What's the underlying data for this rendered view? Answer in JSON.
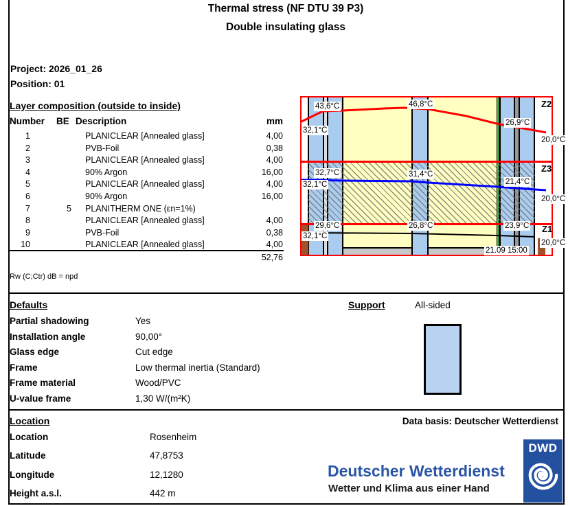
{
  "header": {
    "title_line1": "Thermal stress (NF DTU 39 P3)",
    "title_line2": "Double insulating glass",
    "project": "Project: 2026_01_26",
    "position": "Position: 01"
  },
  "layer_table": {
    "heading": "Layer composition (outside to inside)",
    "columns": [
      "Number",
      "BE",
      "Description",
      "mm"
    ],
    "rows": [
      [
        "1",
        "",
        "PLANICLEAR [Annealed glass]",
        "4,00"
      ],
      [
        "2",
        "",
        "PVB-Foil",
        "0,38"
      ],
      [
        "3",
        "",
        "PLANICLEAR [Annealed glass]",
        "4,00"
      ],
      [
        "4",
        "",
        "90% Argon",
        "16,00"
      ],
      [
        "5",
        "",
        "PLANICLEAR [Annealed glass]",
        "4,00"
      ],
      [
        "6",
        "",
        "90% Argon",
        "16,00"
      ],
      [
        "7",
        "5",
        "PLANITHERM ONE (εn=1%)",
        ""
      ],
      [
        "8",
        "",
        "PLANICLEAR [Annealed glass]",
        "4,00"
      ],
      [
        "9",
        "",
        "PVB-Foil",
        "0,38"
      ],
      [
        "10",
        "",
        "PLANICLEAR [Annealed glass]",
        "4,00"
      ]
    ],
    "total": "52,76",
    "rw_note": "Rw (C;Ctr) dB = npd"
  },
  "diagram": {
    "timestamp": "21.09 15:00",
    "zones": [
      {
        "name": "Z2",
        "temps": {
          "left": "32,1°C",
          "outer_pane": "43,6°C",
          "middle_pane": "46,8°C",
          "inner_pane": "26,9°C",
          "right": "20,0°C"
        }
      },
      {
        "name": "Z3",
        "temps": {
          "left": "32,1°C",
          "outer_pane": "32,7°C",
          "middle_pane": "31,4°C",
          "inner_pane": "21,4°C",
          "right": "20,0°C"
        }
      },
      {
        "name": "Z1",
        "temps": {
          "left": "32,1°C",
          "outer_pane": "29,6°C",
          "middle_pane": "26,8°C",
          "inner_pane": "23,9°C",
          "right": "20,0°C"
        }
      }
    ],
    "colors": {
      "frame_red": "#FF0000",
      "glass_blue": "#AACCEE",
      "gas_yellow": "#FFFFC2",
      "coating_green": "#44D544",
      "spacer_gray": "#C8C8C8",
      "edge_brown": "#A0522D",
      "curve_z2": "#FF0000",
      "curve_z3": "#0000FF",
      "curve_z1": "#000000"
    }
  },
  "defaults": {
    "heading": "Defaults",
    "rows": [
      [
        "Partial shadowing",
        "Yes"
      ],
      [
        "Installation angle",
        "90,00°"
      ],
      [
        "Glass edge",
        "Cut edge"
      ],
      [
        "Frame",
        "Low thermal inertia (Standard)"
      ],
      [
        "Frame material",
        "Wood/PVC"
      ],
      [
        "U-value frame",
        "1,30 W/(m²K)"
      ]
    ]
  },
  "support": {
    "heading": "Support",
    "value": "All-sided",
    "fill_color": "#B8D2F0"
  },
  "location": {
    "heading": "Location",
    "data_basis": "Data basis: Deutscher Wetterdienst",
    "rows": [
      [
        "Location",
        "Rosenheim"
      ],
      [
        "Latitude",
        "47,8753"
      ],
      [
        "Longitude",
        "12,1280"
      ],
      [
        "Height a.s.l.",
        "442 m"
      ]
    ]
  },
  "dwd": {
    "wordmark": "Deutscher Wetterdienst",
    "tagline": "Wetter und Klima aus einer Hand",
    "logo_text": "DWD",
    "brand_color": "#2A55A5"
  }
}
